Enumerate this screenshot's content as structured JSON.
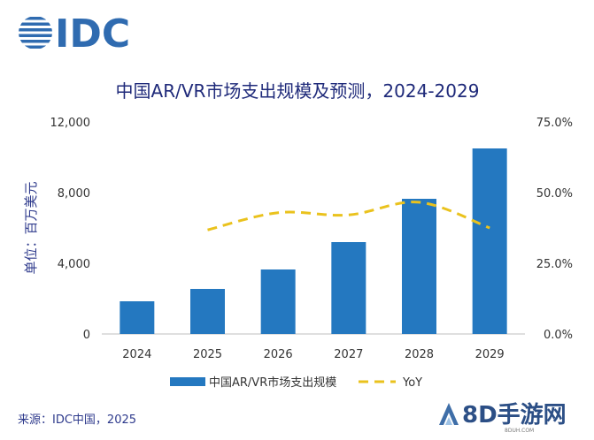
{
  "logo": {
    "text": "IDC",
    "color": "#2f6bb0"
  },
  "chart_data": {
    "type": "bar",
    "title": "中国AR/VR市场支出规模及预测，2024-2029",
    "ylabel": "单位：百万美元",
    "categories": [
      "2024",
      "2025",
      "2026",
      "2027",
      "2028",
      "2029"
    ],
    "series": [
      {
        "name": "中国AR/VR市场支出规模",
        "type": "bar",
        "axis": "left",
        "color": "#2478c0",
        "values": [
          1850,
          2550,
          3650,
          5200,
          7650,
          10500
        ]
      },
      {
        "name": "YoY",
        "type": "line",
        "style": "dashed",
        "axis": "right",
        "color": "#eac21d",
        "values": [
          null,
          36.8,
          42.9,
          42.1,
          46.6,
          37.5
        ]
      }
    ],
    "ylim": [
      0,
      12000
    ],
    "y_ticks": [
      "0",
      "4,000",
      "8,000",
      "12,000"
    ],
    "y2lim": [
      0,
      75
    ],
    "y2_ticks": [
      "0.0%",
      "25.0%",
      "50.0%",
      "75.0%"
    ],
    "grid": false,
    "legend_position": "bottom"
  },
  "source": "来源：IDC中国，2025",
  "watermark": {
    "text": "8D手游网",
    "sub": "8DUH.COM"
  }
}
